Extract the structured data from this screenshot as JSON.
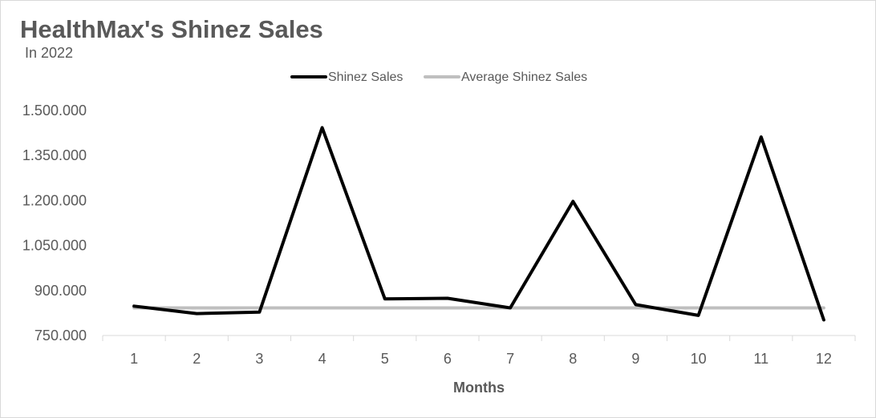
{
  "chart_data": {
    "type": "line",
    "title": "HealthMax's Shinez Sales",
    "subtitle": "In 2022",
    "xlabel": "Months",
    "ylabel": "",
    "categories": [
      "1",
      "2",
      "3",
      "4",
      "5",
      "6",
      "7",
      "8",
      "9",
      "10",
      "11",
      "12"
    ],
    "ylim": [
      750000,
      1500000
    ],
    "yticks": [
      750000,
      900000,
      1050000,
      1200000,
      1350000,
      1500000
    ],
    "ytick_labels": [
      "750.000",
      "900.000",
      "1.050.000",
      "1.200.000",
      "1.350.000",
      "1.500.000"
    ],
    "series": [
      {
        "name": "Shinez Sales",
        "color": "#000000",
        "values": [
          848000,
          823000,
          828000,
          1443000,
          872000,
          874000,
          842000,
          1197000,
          853000,
          817000,
          1412000,
          802000
        ]
      },
      {
        "name": "Average Shinez Sales",
        "color": "#bfbfbf",
        "values": [
          842000,
          842000,
          842000,
          842000,
          842000,
          842000,
          842000,
          842000,
          842000,
          842000,
          842000,
          842000
        ]
      }
    ],
    "grid": false,
    "legend_position": "top"
  }
}
